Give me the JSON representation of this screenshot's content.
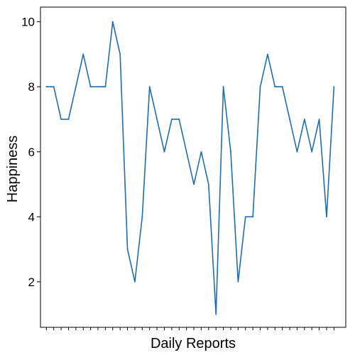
{
  "chart_data": {
    "type": "line",
    "title": "",
    "xlabel": "Daily Reports",
    "ylabel": "Happiness",
    "x": [
      1,
      2,
      3,
      4,
      5,
      6,
      7,
      8,
      9,
      10,
      11,
      12,
      13,
      14,
      15,
      16,
      17,
      18,
      19,
      20,
      21,
      22,
      23,
      24,
      25,
      26,
      27,
      28,
      29,
      30,
      31,
      32,
      33,
      34,
      35,
      36,
      37,
      38,
      39,
      40
    ],
    "series": [
      {
        "values": [
          8,
          8,
          7,
          7,
          8,
          9,
          8,
          8,
          8,
          10,
          9,
          3,
          2,
          4,
          8,
          7,
          6,
          7,
          7,
          6,
          5,
          6,
          5,
          1,
          8,
          6,
          2,
          4,
          4,
          8,
          9,
          8,
          8,
          7,
          6,
          7,
          6,
          7,
          4,
          8
        ]
      }
    ],
    "xlim": [
      0.2,
      41.6
    ],
    "ylim": [
      0.6,
      10.45
    ],
    "yticks": [
      2,
      4,
      6,
      8,
      10
    ],
    "x_tick_labels_shown": false,
    "grid": false,
    "legend": "none",
    "line_color": "#1F6DB0",
    "axis_color": "#000000"
  }
}
